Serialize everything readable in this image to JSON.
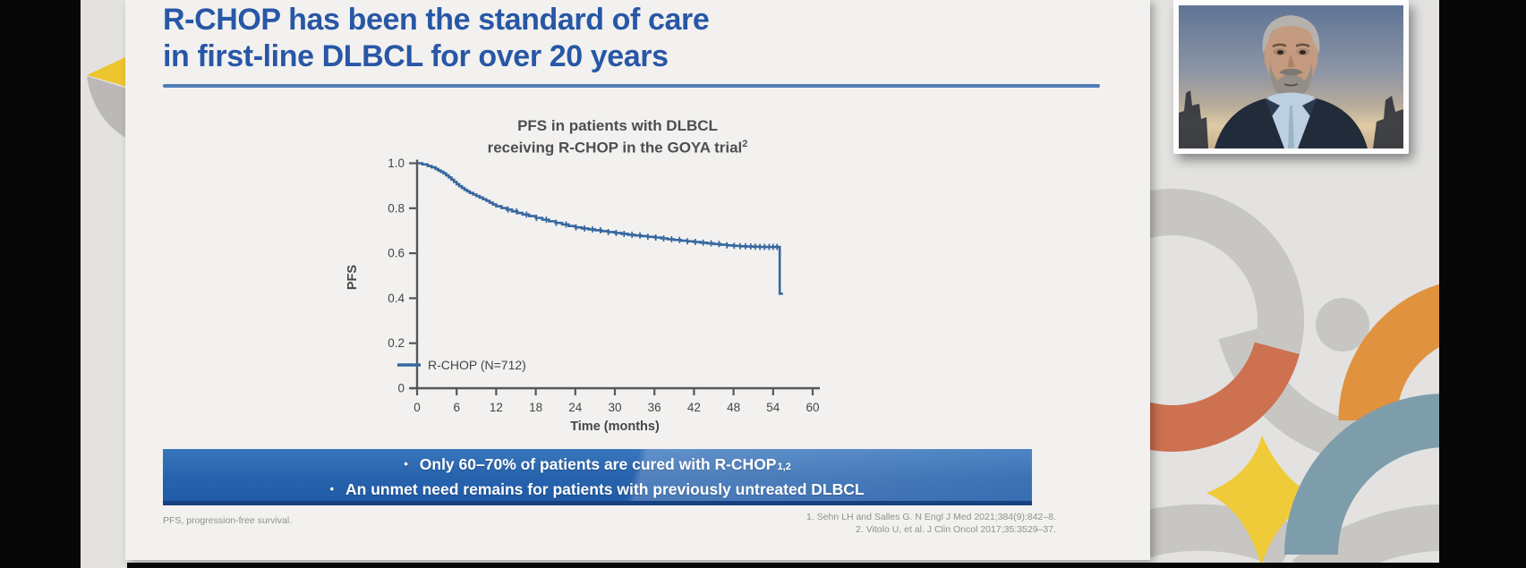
{
  "slide": {
    "title": {
      "line1": "R-CHOP has been the standard of care",
      "line2": "in first-line DLBCL for over 20 years"
    },
    "banner": {
      "bullets": [
        {
          "marker": "•",
          "text": "Only 60–70% of patients are cured with R-CHOP",
          "sup": "1,2"
        },
        {
          "marker": "•",
          "text": "An unmet need remains for patients with previously untreated DLBCL",
          "sup": ""
        }
      ]
    },
    "footnote": "PFS, progression-free survival.",
    "references": {
      "line1": "1. Sehn LH and Salles G. N Engl J Med 2021;384(9):842–8.",
      "line2": "2. Vitolo U, et al. J Clin Oncol 2017;35:3529–37."
    }
  },
  "chart_data": {
    "type": "line",
    "subtype": "kaplan-meier-step-curve",
    "title_line1": "PFS in patients with DLBCL",
    "title_line2": "receiving R-CHOP in the GOYA trial",
    "title_sup": "2",
    "xlabel": "Time (months)",
    "ylabel": "PFS",
    "xlim": [
      0,
      60
    ],
    "ylim": [
      0,
      1.0
    ],
    "grid": false,
    "legend_position": "inside-lower-left",
    "xticks": [
      {
        "v": 0,
        "label": "0"
      },
      {
        "v": 6,
        "label": "6"
      },
      {
        "v": 12,
        "label": "12"
      },
      {
        "v": 18,
        "label": "18"
      },
      {
        "v": 24,
        "label": "24"
      },
      {
        "v": 30,
        "label": "30"
      },
      {
        "v": 36,
        "label": "36"
      },
      {
        "v": 42,
        "label": "42"
      },
      {
        "v": 48,
        "label": "48"
      },
      {
        "v": 54,
        "label": "54"
      },
      {
        "v": 60,
        "label": "60"
      }
    ],
    "yticks": [
      {
        "v": 0,
        "label": "0"
      },
      {
        "v": 0.2,
        "label": "0.2"
      },
      {
        "v": 0.4,
        "label": "0.4"
      },
      {
        "v": 0.6,
        "label": "0.6"
      },
      {
        "v": 0.8,
        "label": "0.8"
      },
      {
        "v": 1.0,
        "label": "1.0"
      }
    ],
    "series": [
      {
        "name": "R-CHOP (N=712)",
        "color": "#36679f",
        "points": [
          [
            0,
            1.0
          ],
          [
            0.8,
            0.995
          ],
          [
            1.6,
            0.988
          ],
          [
            2.2,
            0.982
          ],
          [
            2.8,
            0.975
          ],
          [
            3.2,
            0.968
          ],
          [
            3.6,
            0.962
          ],
          [
            4,
            0.955
          ],
          [
            4.4,
            0.946
          ],
          [
            4.8,
            0.937
          ],
          [
            5.2,
            0.927
          ],
          [
            5.6,
            0.917
          ],
          [
            6,
            0.907
          ],
          [
            6.4,
            0.898
          ],
          [
            6.8,
            0.89
          ],
          [
            7.2,
            0.882
          ],
          [
            7.6,
            0.875
          ],
          [
            8,
            0.868
          ],
          [
            8.5,
            0.861
          ],
          [
            9,
            0.854
          ],
          [
            9.5,
            0.847
          ],
          [
            10,
            0.84
          ],
          [
            10.5,
            0.833
          ],
          [
            11,
            0.825
          ],
          [
            11.5,
            0.817
          ],
          [
            12,
            0.809
          ],
          [
            12.8,
            0.801
          ],
          [
            13.6,
            0.794
          ],
          [
            14.4,
            0.786
          ],
          [
            15.2,
            0.779
          ],
          [
            16,
            0.772
          ],
          [
            17,
            0.765
          ],
          [
            18,
            0.757
          ],
          [
            19,
            0.749
          ],
          [
            20,
            0.742
          ],
          [
            21,
            0.735
          ],
          [
            22,
            0.728
          ],
          [
            23,
            0.721
          ],
          [
            24,
            0.715
          ],
          [
            25,
            0.71
          ],
          [
            26,
            0.706
          ],
          [
            27,
            0.702
          ],
          [
            28,
            0.698
          ],
          [
            29,
            0.694
          ],
          [
            30,
            0.69
          ],
          [
            31,
            0.686
          ],
          [
            32,
            0.682
          ],
          [
            33,
            0.679
          ],
          [
            34,
            0.676
          ],
          [
            35,
            0.673
          ],
          [
            36,
            0.67
          ],
          [
            37,
            0.666
          ],
          [
            38,
            0.662
          ],
          [
            39,
            0.659
          ],
          [
            40,
            0.656
          ],
          [
            41,
            0.653
          ],
          [
            42,
            0.65
          ],
          [
            43,
            0.647
          ],
          [
            44,
            0.644
          ],
          [
            45,
            0.641
          ],
          [
            46,
            0.638
          ],
          [
            47,
            0.635
          ],
          [
            48,
            0.633
          ],
          [
            49,
            0.631
          ],
          [
            50,
            0.63
          ],
          [
            51,
            0.629
          ],
          [
            52,
            0.628
          ],
          [
            53,
            0.628
          ],
          [
            54,
            0.628
          ],
          [
            55,
            0.628
          ],
          [
            55,
            0.42
          ],
          [
            55.5,
            0.42
          ]
        ]
      }
    ],
    "censor_tick_times": [
      13.8,
      15.1,
      16.6,
      18.1,
      19.6,
      21.1,
      22.6,
      24.1,
      25.4,
      26.6,
      27.8,
      29,
      30.2,
      31.4,
      32.6,
      33.8,
      35,
      36.2,
      37.4,
      38.6,
      39.8,
      41,
      42.2,
      43.4,
      44.6,
      45.8,
      47,
      48.1,
      49,
      49.8,
      50.6,
      51.3,
      52,
      52.7,
      53.4,
      54,
      54.6
    ]
  },
  "webcam": {
    "description": "speaker headshot video tile"
  },
  "colors": {
    "title_blue": "#2857a6",
    "rule_blue": "#4e7cb8",
    "banner_blue": "#2763ad",
    "banner_border_navy": "#17417f",
    "curve_blue": "#36679f",
    "decor_terracotta": "#cd7150",
    "decor_gold": "#e0923f",
    "decor_yellow": "#efcb39",
    "decor_slate": "#7e9dab",
    "decor_gray": "#c7c6c3",
    "slide_bg": "#f2f1ef",
    "page_bg": "#e3e2e0",
    "letterbox": "#070707"
  }
}
